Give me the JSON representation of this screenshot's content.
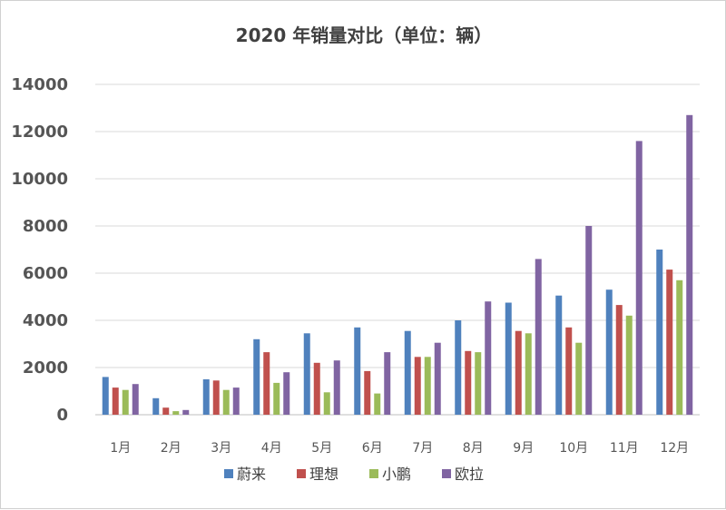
{
  "chart_data": {
    "type": "bar",
    "title": "2020 年销量对比（单位：辆）",
    "xlabel": "",
    "ylabel": "",
    "ylim": [
      0,
      14000
    ],
    "yticks": [
      0,
      2000,
      4000,
      6000,
      8000,
      10000,
      12000,
      14000
    ],
    "grid": true,
    "legend_position": "bottom",
    "categories": [
      "1月",
      "2月",
      "3月",
      "4月",
      "5月",
      "6月",
      "7月",
      "8月",
      "9月",
      "10月",
      "11月",
      "12月"
    ],
    "series": [
      {
        "name": "蔚来",
        "color": "#4f81bd",
        "values": [
          1600,
          700,
          1500,
          3200,
          3450,
          3700,
          3550,
          4000,
          4750,
          5050,
          5300,
          7000
        ]
      },
      {
        "name": "理想",
        "color": "#c0504d",
        "values": [
          1150,
          300,
          1450,
          2650,
          2200,
          1850,
          2450,
          2700,
          3550,
          3700,
          4650,
          6150
        ]
      },
      {
        "name": "小鹏",
        "color": "#9bbb59",
        "values": [
          1050,
          150,
          1050,
          1350,
          950,
          900,
          2450,
          2650,
          3450,
          3050,
          4200,
          5700
        ]
      },
      {
        "name": "欧拉",
        "color": "#8064a2",
        "values": [
          1300,
          200,
          1150,
          1800,
          2300,
          2650,
          3050,
          4800,
          6600,
          8000,
          11600,
          12700
        ]
      }
    ]
  }
}
